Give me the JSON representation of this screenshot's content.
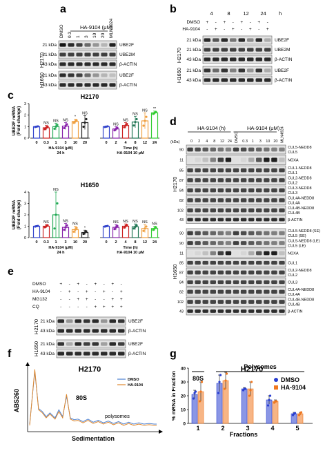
{
  "panel_a": {
    "label": "a",
    "treatment": "HA-9104 (μM)",
    "lanes": [
      "DMSO",
      "0.3",
      "1",
      "3",
      "10",
      "20",
      "MLN4924"
    ],
    "rows": [
      {
        "cell": "H2170",
        "kda": "21 kDa",
        "protein": "UBE2F",
        "levels": [
          1,
          0.9,
          0.8,
          0.6,
          0.4,
          0.25,
          0.95
        ]
      },
      {
        "cell": "H2170",
        "kda": "21 kDa",
        "protein": "UBE2M",
        "levels": [
          0.8,
          0.8,
          0.8,
          0.8,
          0.8,
          0.8,
          0.8
        ]
      },
      {
        "cell": "H2170",
        "kda": "43 kDa",
        "protein": "β-ACTIN",
        "levels": [
          0.9,
          0.9,
          0.9,
          0.9,
          0.9,
          0.9,
          0.9
        ]
      },
      {
        "cell": "H1650",
        "kda": "21 kDa",
        "protein": "UBE2F",
        "levels": [
          0.9,
          0.85,
          0.8,
          0.6,
          0.4,
          0.25,
          0.2
        ]
      },
      {
        "cell": "H1650",
        "kda": "43 kDa",
        "protein": "β-ACTIN",
        "levels": [
          0.9,
          0.9,
          0.9,
          0.9,
          0.9,
          0.9,
          0.9
        ]
      }
    ],
    "groups": [
      "H2170",
      "H1650"
    ]
  },
  "panel_b": {
    "label": "b",
    "times": [
      "4",
      "8",
      "12",
      "24"
    ],
    "time_unit": "h",
    "dmso_label": "DMSO",
    "ha_label": "HA-9104",
    "dmso_signs": [
      "+",
      "-",
      "+",
      "-",
      "+",
      "-",
      "+",
      "-"
    ],
    "ha_signs": [
      "-",
      "+",
      "-",
      "+",
      "-",
      "+",
      "-",
      "+"
    ],
    "rows": [
      {
        "cell": "H2170",
        "kda": "21 kDa",
        "protein": "UBE2F",
        "levels": [
          0.9,
          0.7,
          0.9,
          0.55,
          0.9,
          0.45,
          0.9,
          0.3
        ]
      },
      {
        "cell": "H2170",
        "kda": "21 kDa",
        "protein": "UBE2M",
        "levels": [
          0.8,
          0.8,
          0.8,
          0.8,
          0.8,
          0.8,
          0.8,
          0.8
        ]
      },
      {
        "cell": "H2170",
        "kda": "43 kDa",
        "protein": "β-ACTIN",
        "levels": [
          0.9,
          0.9,
          0.9,
          0.9,
          0.9,
          0.9,
          0.9,
          0.9
        ]
      },
      {
        "cell": "H1650",
        "kda": "21 kDa",
        "protein": "UBE2F",
        "levels": [
          0.85,
          0.6,
          0.85,
          0.5,
          0.85,
          0.4,
          0.85,
          0.3
        ]
      },
      {
        "cell": "H1650",
        "kda": "43 kDa",
        "protein": "β-ACTIN",
        "levels": [
          0.9,
          0.9,
          0.9,
          0.9,
          0.9,
          0.9,
          0.9,
          0.9
        ]
      }
    ],
    "groups": [
      "H2170",
      "H1650"
    ]
  },
  "panel_c": {
    "label": "c",
    "ylabel": "UBE2F mRNA\n(Fold change)",
    "charts": [
      {
        "title": "H2170",
        "ylim": [
          0,
          3
        ],
        "yticks": [
          "0",
          "1",
          "2",
          "3"
        ],
        "groups": [
          {
            "xlabel": "HA-9104 (μM)",
            "sublabel": "24 h",
            "categories": [
              "0",
              "0.3",
              "1",
              "3",
              "10",
              "20"
            ],
            "values": [
              1.0,
              0.9,
              1.0,
              1.05,
              1.45,
              1.35
            ],
            "errors": [
              0.05,
              0.2,
              0.3,
              0.3,
              0.2,
              0.6
            ],
            "significance": [
              "",
              "NS",
              "NS",
              "NS",
              "*",
              "NS"
            ],
            "colors": [
              "#3344cc",
              "#cc2222",
              "#22aa55",
              "#8822aa",
              "#f0a040",
              "#222222"
            ]
          },
          {
            "xlabel": "Time (h)",
            "sublabel": "HA-9104 10 μM",
            "categories": [
              "0",
              "2",
              "4",
              "8",
              "12",
              "24"
            ],
            "values": [
              1.0,
              0.8,
              1.1,
              1.4,
              1.5,
              2.2
            ],
            "errors": [
              0.05,
              0.2,
              0.25,
              0.5,
              0.7,
              0.15
            ],
            "significance": [
              "",
              "NS",
              "NS",
              "NS",
              "NS",
              "**"
            ],
            "colors": [
              "#3344cc",
              "#8822aa",
              "#cc2222",
              "#227755",
              "#f0a040",
              "#33cc33"
            ]
          }
        ]
      },
      {
        "title": "H1650",
        "ylim": [
          0,
          4
        ],
        "yticks": [
          "0",
          "1",
          "2",
          "3",
          "4"
        ],
        "groups": [
          {
            "xlabel": "HA-9104 (μM)",
            "sublabel": "24 h",
            "categories": [
              "0",
              "0.3",
              "1",
              "3",
              "10",
              "20"
            ],
            "values": [
              1.0,
              1.0,
              2.0,
              0.9,
              0.7,
              0.45
            ],
            "errors": [
              0.05,
              0.15,
              2.0,
              0.35,
              0.3,
              0.2
            ],
            "significance": [
              "",
              "NS",
              "NS",
              "NS",
              "NS",
              "*"
            ],
            "colors": [
              "#3344cc",
              "#cc2222",
              "#22aa55",
              "#8822aa",
              "#f0a040",
              "#222222"
            ]
          },
          {
            "xlabel": "Time (h)",
            "sublabel": "HA-9104 10 μM",
            "categories": [
              "0",
              "2",
              "4",
              "8",
              "12",
              "24"
            ],
            "values": [
              1.0,
              0.9,
              1.0,
              0.95,
              0.8,
              0.8
            ],
            "errors": [
              0.05,
              0.25,
              0.2,
              0.25,
              0.35,
              0.2
            ],
            "significance": [
              "",
              "NS",
              "NS",
              "NS",
              "NS",
              "NS"
            ],
            "colors": [
              "#3344cc",
              "#8822aa",
              "#cc2222",
              "#227755",
              "#f0a040",
              "#33cc33"
            ]
          }
        ]
      }
    ]
  },
  "panel_d": {
    "label": "d",
    "kda_header": "(kDa)",
    "time_header": "HA-9104 (h)",
    "dose_header": "HA-9104 (μM)",
    "lanes": [
      "0",
      "2",
      "4",
      "8",
      "12",
      "24",
      "DMSO",
      "0.3",
      "1",
      "3",
      "10",
      "20",
      "MLN4924"
    ],
    "groups": [
      "H2170",
      "H1650"
    ],
    "rows": [
      {
        "group": "H2170",
        "kda": "90",
        "labels": [
          "CUL5-NEDD8",
          "CUL5"
        ],
        "h": 13,
        "pattern": "doublet"
      },
      {
        "group": "H2170",
        "kda": "11",
        "labels": [
          "NOXA"
        ],
        "h": 14,
        "pattern": "noxa"
      },
      {
        "group": "H2170",
        "kda": "85",
        "labels": [
          "CUL1-NEDD8",
          "CUL1"
        ],
        "h": 13,
        "pattern": "even"
      },
      {
        "group": "H2170",
        "kda": "87",
        "labels": [
          "CUL2-NEDD8",
          "CUL2"
        ],
        "h": 13,
        "pattern": "even"
      },
      {
        "group": "H2170",
        "kda": "84",
        "labels": [
          "CUL3-NEDD8",
          "CUL3"
        ],
        "h": 13,
        "pattern": "even"
      },
      {
        "group": "H2170",
        "kda": "82",
        "labels": [
          "CUL4A-NEDD8",
          "CUL4A"
        ],
        "h": 13,
        "pattern": "even"
      },
      {
        "group": "H2170",
        "kda": "102",
        "labels": [
          "CUL4B-NEDD8",
          "CUL4B"
        ],
        "h": 13,
        "pattern": "even"
      },
      {
        "group": "H2170",
        "kda": "43",
        "labels": [
          "β-ACTIN"
        ],
        "h": 11,
        "pattern": "actin"
      },
      {
        "group": "H1650",
        "kda": "90",
        "labels": [
          "CUL5-NEDD8 (SE)",
          "CUL5 (SE)"
        ],
        "h": 13,
        "pattern": "doublet"
      },
      {
        "group": "H1650",
        "kda": "90",
        "labels": [
          "CUL5-NEDD8 (LE)",
          "CUL5 (LE)"
        ],
        "h": 13,
        "pattern": "doublet"
      },
      {
        "group": "H1650",
        "kda": "11",
        "labels": [
          "NOXA"
        ],
        "h": 13,
        "pattern": "noxa"
      },
      {
        "group": "H1650",
        "kda": "85",
        "labels": [
          "CUL1"
        ],
        "h": 12,
        "pattern": "even"
      },
      {
        "group": "H1650",
        "kda": "87",
        "labels": [
          "CUL2-NEDD8",
          "CUL2"
        ],
        "h": 13,
        "pattern": "even"
      },
      {
        "group": "H1650",
        "kda": "84",
        "labels": [
          "CUL3"
        ],
        "h": 12,
        "pattern": "even"
      },
      {
        "group": "H1650",
        "kda": "82",
        "labels": [
          "CUL4A-NEDD8",
          "CUL4A"
        ],
        "h": 13,
        "pattern": "even"
      },
      {
        "group": "H1650",
        "kda": "102",
        "labels": [
          "CUL4B-NEDD8",
          "CUL4B"
        ],
        "h": 13,
        "pattern": "even"
      },
      {
        "group": "H1650",
        "kda": "43",
        "labels": [
          "β-ACTIN"
        ],
        "h": 11,
        "pattern": "actin"
      }
    ]
  },
  "panel_e": {
    "label": "e",
    "conditions": [
      {
        "name": "DMSO",
        "signs": [
          "+",
          "-",
          "+",
          "-",
          "+",
          "-",
          "+",
          "-"
        ]
      },
      {
        "name": "HA-9104",
        "signs": [
          "-",
          "+",
          "-",
          "+",
          "-",
          "+",
          "-",
          "+"
        ]
      },
      {
        "name": "MG132",
        "signs": [
          "-",
          "-",
          "+",
          "+",
          "-",
          "-",
          "+",
          "+"
        ]
      },
      {
        "name": "CQ",
        "signs": [
          "-",
          "-",
          "-",
          "-",
          "+",
          "+",
          "+",
          "+"
        ]
      }
    ],
    "rows": [
      {
        "cell": "H2170",
        "kda": "21 kDa",
        "protein": "UBE2F",
        "levels": [
          0.9,
          0.4,
          0.9,
          0.85,
          0.9,
          0.4,
          0.9,
          0.85
        ]
      },
      {
        "cell": "H2170",
        "kda": "43 kDa",
        "protein": "β-ACTIN",
        "levels": [
          0.9,
          0.9,
          0.9,
          0.9,
          0.9,
          0.9,
          0.9,
          0.9
        ]
      },
      {
        "cell": "H1650",
        "kda": "21 kDa",
        "protein": "UBE2F",
        "levels": [
          0.85,
          0.3,
          0.9,
          0.8,
          0.85,
          0.35,
          0.9,
          0.8
        ]
      },
      {
        "cell": "H1650",
        "kda": "43 kDa",
        "protein": "β-ACTIN",
        "levels": [
          0.9,
          0.9,
          0.9,
          0.9,
          0.9,
          0.9,
          0.9,
          0.9
        ]
      }
    ],
    "groups": [
      "H2170",
      "H1650"
    ]
  },
  "panel_f": {
    "label": "f",
    "chart_data": {
      "type": "line",
      "title": "H2170",
      "xlabel": "Sedimentation",
      "ylabel": "ABS260",
      "annotations": [
        "80S",
        "polysomes"
      ],
      "legend_position": "top-right",
      "series": [
        {
          "name": "DMSO",
          "color": "#4a7fd0",
          "x": [
            0,
            0.04,
            0.07,
            0.1,
            0.13,
            0.16,
            0.2,
            0.23,
            0.26,
            0.29,
            0.32,
            0.35,
            0.38,
            0.42,
            0.46,
            0.5,
            0.54,
            0.58,
            0.62,
            0.66,
            0.7,
            0.74,
            0.78,
            0.82,
            0.86,
            0.9,
            0.94,
            0.98,
            1.0
          ],
          "y": [
            0.1,
            0.95,
            0.35,
            0.3,
            0.22,
            0.28,
            0.2,
            0.33,
            0.22,
            0.55,
            0.2,
            0.17,
            0.18,
            0.14,
            0.18,
            0.13,
            0.16,
            0.12,
            0.15,
            0.11,
            0.14,
            0.1,
            0.13,
            0.1,
            0.12,
            0.1,
            0.11,
            0.1,
            0.1
          ]
        },
        {
          "name": "HA-9104",
          "color": "#e0892e",
          "x": [
            0,
            0.04,
            0.07,
            0.1,
            0.13,
            0.16,
            0.2,
            0.23,
            0.26,
            0.29,
            0.32,
            0.35,
            0.38,
            0.42,
            0.46,
            0.5,
            0.54,
            0.58,
            0.62,
            0.66,
            0.7,
            0.74,
            0.78,
            0.82,
            0.86,
            0.9,
            0.94,
            0.98,
            1.0
          ],
          "y": [
            0.08,
            0.98,
            0.33,
            0.28,
            0.2,
            0.26,
            0.18,
            0.3,
            0.2,
            0.58,
            0.18,
            0.15,
            0.16,
            0.12,
            0.16,
            0.11,
            0.14,
            0.1,
            0.13,
            0.09,
            0.12,
            0.08,
            0.11,
            0.08,
            0.1,
            0.08,
            0.09,
            0.08,
            0.08
          ]
        }
      ]
    }
  },
  "panel_g": {
    "label": "g",
    "chart_data": {
      "type": "bar",
      "title": "H2170",
      "xlabel": "Fractions",
      "ylabel": "% mRNA in Fraction",
      "categories": [
        "1",
        "2",
        "3",
        "4",
        "5"
      ],
      "ylim": [
        0,
        40
      ],
      "yticks": [
        "0",
        "10",
        "20",
        "30",
        "40"
      ],
      "bracket_80S": "80S",
      "bracket_polysomes": "Polysomes",
      "legend_position": "top-right",
      "series": [
        {
          "name": "DMSO",
          "color": "#2a3fd0",
          "values": [
            21,
            29,
            25,
            17,
            7
          ],
          "errors": [
            3,
            6,
            1,
            3,
            1
          ],
          "points": [
            [
              18,
              22,
              23
            ],
            [
              22,
              30,
              35
            ],
            [
              24,
              25,
              25
            ],
            [
              13,
              17,
              20
            ],
            [
              6,
              7,
              7.5
            ]
          ]
        },
        {
          "name": "HA-9104",
          "color": "#f07820",
          "values": [
            23,
            31,
            25,
            16,
            7
          ],
          "errors": [
            7,
            6,
            5,
            1,
            1
          ],
          "points": [
            [
              16,
              23,
              30
            ],
            [
              25,
              31,
              36
            ],
            [
              20,
              24,
              30
            ],
            [
              15,
              16,
              16
            ],
            [
              6,
              7,
              8
            ]
          ]
        }
      ]
    }
  }
}
